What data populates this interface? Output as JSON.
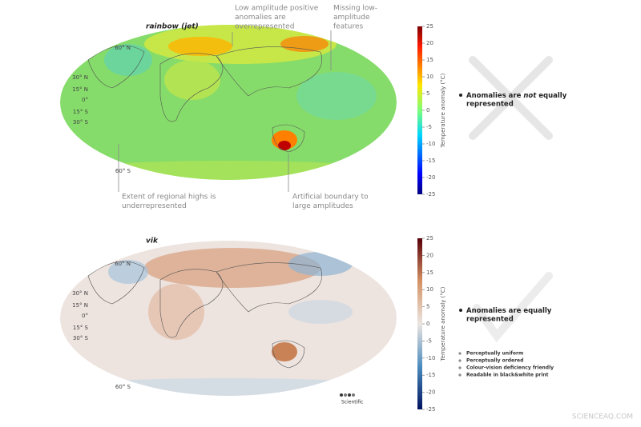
{
  "panels": [
    {
      "title": "rainbow (jet)",
      "colorbar": {
        "label": "Temperature anomaly (°C)",
        "ticks": [
          25,
          20,
          15,
          10,
          5,
          0,
          -5,
          -10,
          -15,
          -20,
          -25
        ]
      },
      "lat_labels": [
        "60° N",
        "30° N",
        "15° N",
        "0°",
        "15° S",
        "30° S",
        "60° S"
      ],
      "annotations": [
        {
          "lines": [
            "Low amplitude positive",
            "anomalies are",
            "overrepresented"
          ]
        },
        {
          "lines": [
            "Missing low-",
            "amplitude",
            "features"
          ]
        },
        {
          "lines": [
            "Extent of regional highs is",
            "underrepresented"
          ]
        },
        {
          "lines": [
            "Artificial boundary to",
            "large amplitudes"
          ]
        }
      ],
      "verdict": [
        "Anomalies are ",
        "not",
        " equally",
        "represented"
      ]
    },
    {
      "title": "vik",
      "colorbar": {
        "label": "Temperature anomaly (°C)",
        "ticks": [
          25,
          20,
          15,
          10,
          5,
          0,
          -5,
          -10,
          -15,
          -20,
          -25
        ]
      },
      "lat_labels": [
        "60° N",
        "30° N",
        "15° N",
        "0°",
        "15° S",
        "30° S",
        "60° S"
      ],
      "verdict": [
        "Anomalies are equally",
        "represented"
      ],
      "features": [
        "Perceptually uniform",
        "Perceptually ordered",
        "Colour-vision deficiency friendly",
        "Readable in black&white print"
      ],
      "logo": "Scientific"
    }
  ],
  "watermark": "SCIENCEAQ.COM"
}
